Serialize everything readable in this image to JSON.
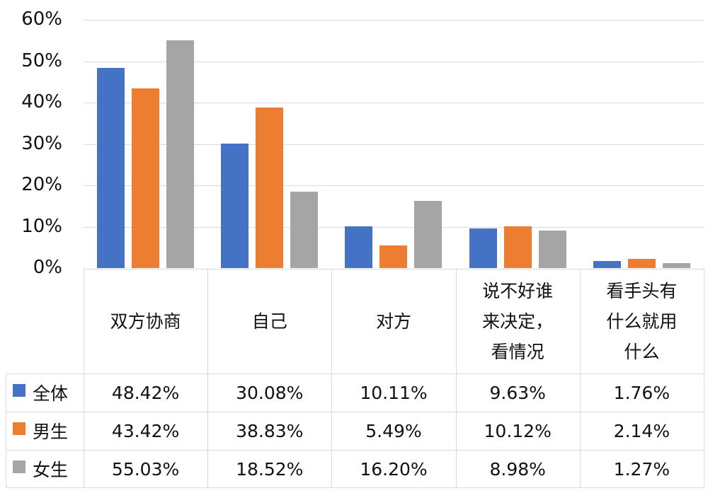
{
  "chart_data": {
    "type": "bar",
    "title": "",
    "xlabel": "",
    "ylabel": "",
    "ylim": [
      0,
      60
    ],
    "y_ticks": [
      "0%",
      "10%",
      "20%",
      "30%",
      "40%",
      "50%",
      "60%"
    ],
    "grid": true,
    "legend_position": "data-table",
    "categories": [
      "双方协商",
      "自己",
      "对方",
      "说不好谁\n来决定，\n看情况",
      "看手头有\n什么就用\n什么"
    ],
    "series": [
      {
        "name": "全体",
        "color": "#4472c4",
        "values": [
          48.42,
          30.08,
          10.11,
          9.63,
          1.76
        ],
        "labels": [
          "48.42%",
          "30.08%",
          "10.11%",
          "9.63%",
          "1.76%"
        ]
      },
      {
        "name": "男生",
        "color": "#ed7d31",
        "values": [
          43.42,
          38.83,
          5.49,
          10.12,
          2.14
        ],
        "labels": [
          "43.42%",
          "38.83%",
          "5.49%",
          "10.12%",
          "2.14%"
        ]
      },
      {
        "name": "女生",
        "color": "#a5a5a5",
        "values": [
          55.03,
          18.52,
          16.2,
          8.98,
          1.27
        ],
        "labels": [
          "55.03%",
          "18.52%",
          "16.20%",
          "8.98%",
          "1.27%"
        ]
      }
    ]
  }
}
